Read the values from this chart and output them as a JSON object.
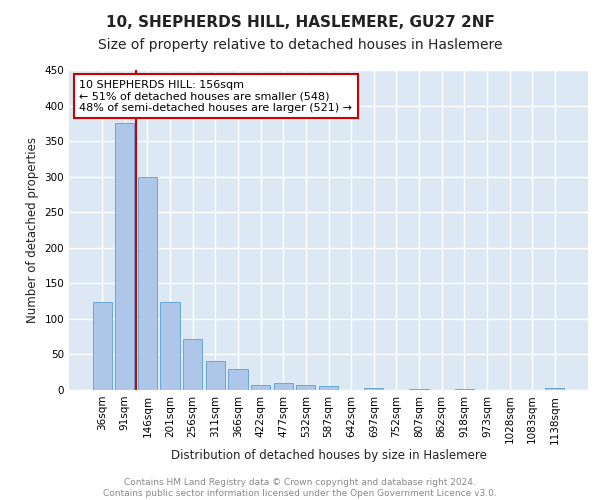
{
  "title": "10, SHEPHERDS HILL, HASLEMERE, GU27 2NF",
  "subtitle": "Size of property relative to detached houses in Haslemere",
  "xlabel": "Distribution of detached houses by size in Haslemere",
  "ylabel": "Number of detached properties",
  "footer_line1": "Contains HM Land Registry data © Crown copyright and database right 2024.",
  "footer_line2": "Contains public sector information licensed under the Open Government Licence v3.0.",
  "categories": [
    "36sqm",
    "91sqm",
    "146sqm",
    "201sqm",
    "256sqm",
    "311sqm",
    "366sqm",
    "422sqm",
    "477sqm",
    "532sqm",
    "587sqm",
    "642sqm",
    "697sqm",
    "752sqm",
    "807sqm",
    "862sqm",
    "918sqm",
    "973sqm",
    "1028sqm",
    "1083sqm",
    "1138sqm"
  ],
  "values": [
    124,
    375,
    300,
    124,
    72,
    41,
    29,
    7,
    10,
    7,
    5,
    0,
    3,
    0,
    2,
    0,
    1,
    0,
    0,
    0,
    3
  ],
  "bar_color": "#aec6e8",
  "bar_edge_color": "#5a9fd4",
  "background_color": "#dce9f5",
  "grid_color": "#ffffff",
  "annotation_text": "10 SHEPHERDS HILL: 156sqm\n← 51% of detached houses are smaller (548)\n48% of semi-detached houses are larger (521) →",
  "annotation_box_color": "#ffffff",
  "annotation_border_color": "#cc0000",
  "vline_color": "#cc0000",
  "ylim": [
    0,
    450
  ],
  "yticks": [
    0,
    50,
    100,
    150,
    200,
    250,
    300,
    350,
    400,
    450
  ],
  "title_fontsize": 11,
  "subtitle_fontsize": 10,
  "xlabel_fontsize": 8.5,
  "ylabel_fontsize": 8.5,
  "tick_fontsize": 7.5,
  "annotation_fontsize": 8,
  "footer_fontsize": 6.5
}
